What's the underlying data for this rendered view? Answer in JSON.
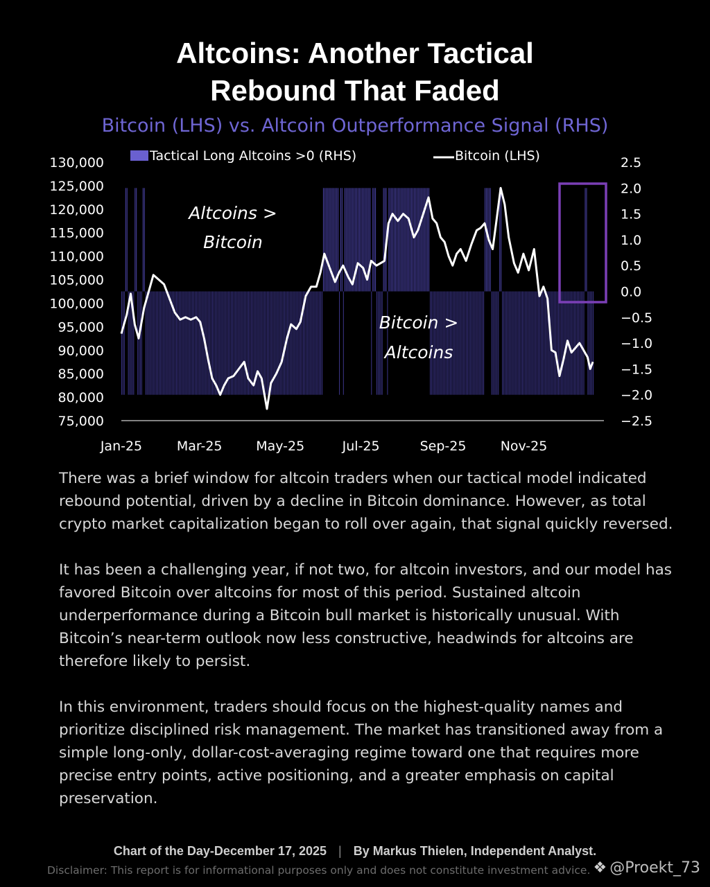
{
  "page": {
    "title_line1": "Altcoins: Another Tactical",
    "title_line2": "Rebound That Faded",
    "subtitle": "Bitcoin (LHS) vs. Altcoin Outperformance Signal (RHS)"
  },
  "chart_data": {
    "type": "bar+line",
    "title": "Bitcoin (LHS) vs. Altcoin Outperformance Signal (RHS)",
    "legend": [
      {
        "label": "Tactical Long Altcoins >0 (RHS)",
        "color": "#6a60d0",
        "kind": "bar"
      },
      {
        "label": "Bitcoin (LHS)",
        "color": "#ffffff",
        "kind": "line"
      }
    ],
    "y_left": {
      "range": [
        75000,
        130000
      ],
      "ticks": [
        "130,000",
        "125,000",
        "120,000",
        "115,000",
        "110,000",
        "105,000",
        "100,000",
        "95,000",
        "90,000",
        "85,000",
        "80,000",
        "75,000"
      ]
    },
    "y_right": {
      "range": [
        -2.5,
        2.5
      ],
      "ticks": [
        "2.5",
        "2.0",
        "1.5",
        "1.0",
        "0.5",
        "0.0",
        "-0.5",
        "-1.0",
        "-1.5",
        "-2.0",
        "-2.5"
      ]
    },
    "x_ticks": [
      "Jan-25",
      "Mar-25",
      "May-25",
      "Jul-25",
      "Sep-25",
      "Nov-25"
    ],
    "x_range_days": [
      0,
      365
    ],
    "annotations": [
      {
        "lines": [
          "Altcoins >",
          "Bitcoin"
        ]
      },
      {
        "lines": [
          "Bitcoin >",
          "Altcoins"
        ]
      }
    ],
    "signal_positive_days": [
      [
        3,
        4
      ],
      [
        10,
        11
      ],
      [
        16,
        17
      ],
      [
        151,
        162
      ],
      [
        164,
        165
      ],
      [
        167,
        186
      ],
      [
        188,
        190
      ],
      [
        196,
        198
      ],
      [
        200,
        230
      ],
      [
        272,
        276
      ],
      [
        283,
        284
      ],
      [
        347,
        348
      ]
    ],
    "signal_levels": {
      "positive": 2.0,
      "negative": -2.0
    },
    "bitcoin_series": [
      [
        0,
        93500
      ],
      [
        4,
        97500
      ],
      [
        7,
        102000
      ],
      [
        10,
        95500
      ],
      [
        13,
        92500
      ],
      [
        17,
        99000
      ],
      [
        21,
        103000
      ],
      [
        24,
        106000
      ],
      [
        28,
        105000
      ],
      [
        32,
        104000
      ],
      [
        36,
        101000
      ],
      [
        40,
        98000
      ],
      [
        44,
        96500
      ],
      [
        48,
        97000
      ],
      [
        52,
        96500
      ],
      [
        56,
        97000
      ],
      [
        59,
        96000
      ],
      [
        62,
        92500
      ],
      [
        65,
        88000
      ],
      [
        68,
        84000
      ],
      [
        71,
        82500
      ],
      [
        74,
        80500
      ],
      [
        77,
        82500
      ],
      [
        80,
        84000
      ],
      [
        84,
        84500
      ],
      [
        88,
        86000
      ],
      [
        92,
        87500
      ],
      [
        95,
        84000
      ],
      [
        99,
        82500
      ],
      [
        102,
        85500
      ],
      [
        105,
        84000
      ],
      [
        109,
        77500
      ],
      [
        112,
        83000
      ],
      [
        116,
        85000
      ],
      [
        120,
        87500
      ],
      [
        124,
        92500
      ],
      [
        127,
        95500
      ],
      [
        131,
        94500
      ],
      [
        134,
        96000
      ],
      [
        138,
        101500
      ],
      [
        142,
        103500
      ],
      [
        146,
        103500
      ],
      [
        149,
        106500
      ],
      [
        152,
        110500
      ],
      [
        156,
        107500
      ],
      [
        160,
        104500
      ],
      [
        163,
        106500
      ],
      [
        166,
        108000
      ],
      [
        170,
        105500
      ],
      [
        173,
        104000
      ],
      [
        177,
        108500
      ],
      [
        181,
        107500
      ],
      [
        184,
        105000
      ],
      [
        187,
        109000
      ],
      [
        191,
        108000
      ],
      [
        194,
        108500
      ],
      [
        197,
        109000
      ],
      [
        200,
        117000
      ],
      [
        203,
        119000
      ],
      [
        207,
        117500
      ],
      [
        211,
        119000
      ],
      [
        215,
        118000
      ],
      [
        219,
        114000
      ],
      [
        222,
        115500
      ],
      [
        226,
        119000
      ],
      [
        230,
        122500
      ],
      [
        233,
        118000
      ],
      [
        236,
        117000
      ],
      [
        239,
        114000
      ],
      [
        242,
        113000
      ],
      [
        245,
        110000
      ],
      [
        248,
        108000
      ],
      [
        251,
        110500
      ],
      [
        254,
        111500
      ],
      [
        258,
        109000
      ],
      [
        262,
        112500
      ],
      [
        266,
        115500
      ],
      [
        269,
        116000
      ],
      [
        272,
        117000
      ],
      [
        275,
        113500
      ],
      [
        278,
        111500
      ],
      [
        281,
        118000
      ],
      [
        284,
        124500
      ],
      [
        287,
        121000
      ],
      [
        290,
        114000
      ],
      [
        294,
        108500
      ],
      [
        297,
        106500
      ],
      [
        301,
        110500
      ],
      [
        305,
        107000
      ],
      [
        309,
        111500
      ],
      [
        313,
        101500
      ],
      [
        316,
        103500
      ],
      [
        319,
        101000
      ],
      [
        322,
        90000
      ],
      [
        325,
        89500
      ],
      [
        328,
        84500
      ],
      [
        331,
        88000
      ],
      [
        334,
        92000
      ],
      [
        337,
        89500
      ],
      [
        340,
        90500
      ],
      [
        343,
        91500
      ],
      [
        346,
        90000
      ],
      [
        349,
        88500
      ],
      [
        351,
        86000
      ],
      [
        353,
        87500
      ]
    ]
  },
  "body": {
    "p1": "There was a brief window for altcoin traders when our tactical model indicated rebound potential, driven by a decline in Bitcoin dominance. However, as total crypto market capitalization began to roll over again, that signal quickly reversed.",
    "p2": "It has been a challenging year, if not two, for altcoin investors, and our model has favored Bitcoin over altcoins for most of this period. Sustained altcoin underperformance during a Bitcoin bull market is historically unusual. With Bitcoin’s near-term outlook now less constructive, headwinds for altcoins are therefore likely to persist.",
    "p3": "In this environment, traders should focus on the highest-quality names and prioritize disciplined risk management. The market has transitioned away from a simple long-only, dollar-cost-averaging regime toward one that requires more precise entry points, active positioning, and a greater emphasis on capital preservation."
  },
  "footer": {
    "left": "Chart of the Day-December 17, 2025",
    "separator": "|",
    "right": "By Markus Thielen, Independent Analyst.",
    "disclaimer": "Disclaimer: This report is for informational purposes only and does not constitute investment advice."
  },
  "watermark": {
    "logo_icon": "binance-diamond-icon",
    "handle": "@Proekt_73"
  },
  "colors": {
    "bar": "#3b3587",
    "bar_pos": "#4a43a6",
    "accent": "#6f66d4",
    "highlight": "#7a3fb5",
    "background": "#000000"
  }
}
